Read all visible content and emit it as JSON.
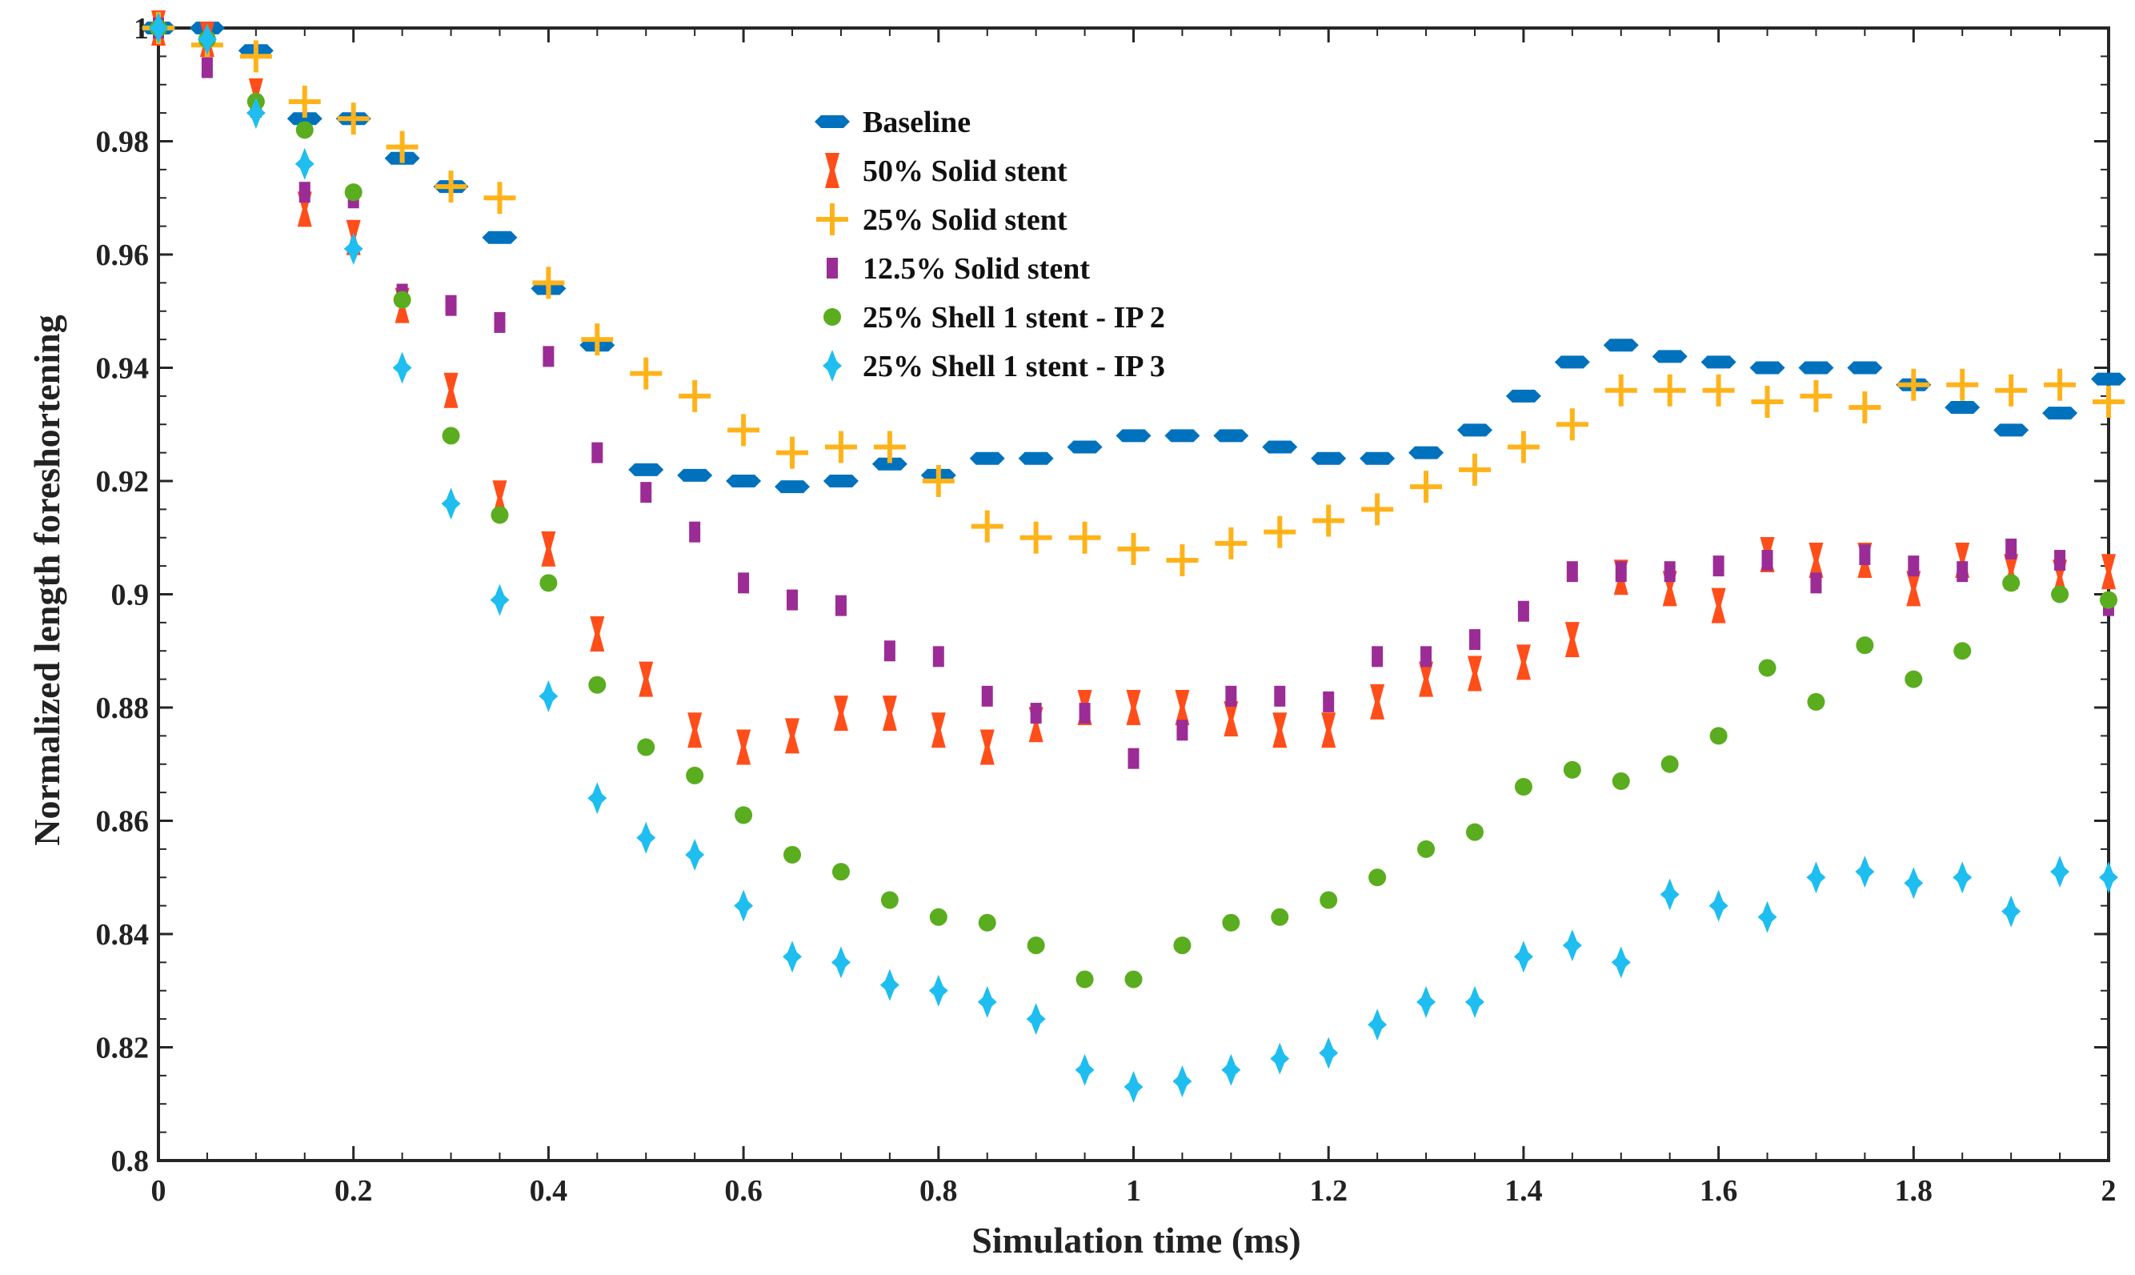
{
  "chart_data": {
    "type": "scatter",
    "title": "",
    "xlabel": "Simulation time (ms)",
    "ylabel": "Normalized length foreshortening",
    "xlim": [
      0,
      2
    ],
    "ylim": [
      0.8,
      1
    ],
    "xticks": [
      0,
      0.2,
      0.4,
      0.6,
      0.8,
      1,
      1.2,
      1.4,
      1.6,
      1.8,
      2
    ],
    "xtick_labels": [
      "0",
      "0.2",
      "0.4",
      "0.6",
      "0.8",
      "1",
      "1.2",
      "1.4",
      "1.6",
      "1.8",
      "2"
    ],
    "yticks": [
      0.8,
      0.82,
      0.84,
      0.86,
      0.88,
      0.9,
      0.92,
      0.94,
      0.96,
      0.98,
      1
    ],
    "ytick_labels": [
      "0.8",
      "0.82",
      "0.84",
      "0.86",
      "0.88",
      "0.9",
      "0.92",
      "0.94",
      "0.96",
      "0.98",
      "1"
    ],
    "legend_position": "top-center",
    "x": [
      0,
      0.05,
      0.1,
      0.15,
      0.2,
      0.25,
      0.3,
      0.35,
      0.4,
      0.45,
      0.5,
      0.55,
      0.6,
      0.65,
      0.7,
      0.75,
      0.8,
      0.85,
      0.9,
      0.95,
      1,
      1.05,
      1.1,
      1.15,
      1.2,
      1.25,
      1.3,
      1.35,
      1.4,
      1.45,
      1.5,
      1.55,
      1.6,
      1.65,
      1.7,
      1.75,
      1.8,
      1.85,
      1.9,
      1.95,
      2
    ],
    "series": [
      {
        "name": "Baseline",
        "marker": "hexagon-h",
        "color": "#0072BD",
        "values": [
          1,
          1,
          0.996,
          0.984,
          0.984,
          0.977,
          0.972,
          0.963,
          0.954,
          0.944,
          0.922,
          0.921,
          0.92,
          0.919,
          0.92,
          0.923,
          0.921,
          0.924,
          0.924,
          0.926,
          0.928,
          0.928,
          0.928,
          0.926,
          0.924,
          0.924,
          0.925,
          0.929,
          0.935,
          0.941,
          0.944,
          0.942,
          0.941,
          0.94,
          0.94,
          0.94,
          0.937,
          0.933,
          0.929,
          0.932,
          0.938
        ]
      },
      {
        "name": "50% Solid stent",
        "marker": "bowtie",
        "color": "#FF4E1A",
        "values": [
          1,
          0.998,
          0.988,
          0.968,
          0.963,
          0.951,
          0.936,
          0.917,
          0.908,
          0.893,
          0.885,
          0.876,
          0.873,
          0.875,
          0.879,
          0.879,
          0.876,
          0.873,
          0.877,
          0.88,
          0.88,
          0.88,
          0.878,
          0.876,
          0.876,
          0.881,
          0.885,
          0.886,
          0.888,
          0.892,
          0.903,
          0.901,
          0.898,
          0.907,
          0.906,
          0.906,
          0.901,
          0.906,
          0.904,
          0.903,
          0.904
        ]
      },
      {
        "name": "25% Solid stent",
        "marker": "plus",
        "color": "#FFB31A",
        "values": [
          1,
          0.997,
          0.995,
          0.987,
          0.984,
          0.979,
          0.972,
          0.97,
          0.955,
          0.945,
          0.939,
          0.935,
          0.929,
          0.925,
          0.926,
          0.926,
          0.92,
          0.912,
          0.91,
          0.91,
          0.908,
          0.906,
          0.909,
          0.911,
          0.913,
          0.915,
          0.919,
          0.922,
          0.926,
          0.93,
          0.936,
          0.936,
          0.936,
          0.934,
          0.935,
          0.933,
          0.937,
          0.937,
          0.936,
          0.937,
          0.934
        ]
      },
      {
        "name": "12.5% Solid stent",
        "marker": "vrect",
        "color": "#9B2C96",
        "values": [
          1,
          0.993,
          0.986,
          0.971,
          0.97,
          0.953,
          0.951,
          0.948,
          0.942,
          0.925,
          0.918,
          0.911,
          0.902,
          0.899,
          0.898,
          0.89,
          0.889,
          0.882,
          0.879,
          0.879,
          0.871,
          0.876,
          0.882,
          0.882,
          0.881,
          0.889,
          0.889,
          0.892,
          0.897,
          0.904,
          0.904,
          0.904,
          0.905,
          0.906,
          0.902,
          0.907,
          0.905,
          0.904,
          0.908,
          0.906,
          0.898
        ]
      },
      {
        "name": "25% Shell 1 stent - IP 2",
        "marker": "circle",
        "color": "#5AAD1E",
        "values": [
          1,
          0.998,
          0.987,
          0.982,
          0.971,
          0.952,
          0.928,
          0.914,
          0.902,
          0.884,
          0.873,
          0.868,
          0.861,
          0.854,
          0.851,
          0.846,
          0.843,
          0.842,
          0.838,
          0.832,
          0.832,
          0.838,
          0.842,
          0.843,
          0.846,
          0.85,
          0.855,
          0.858,
          0.866,
          0.869,
          0.867,
          0.87,
          0.875,
          0.887,
          0.881,
          0.891,
          0.885,
          0.89,
          0.902,
          0.9,
          0.899
        ]
      },
      {
        "name": "25% Shell 1 stent - IP 3",
        "marker": "star",
        "color": "#1EBEF0",
        "values": [
          1,
          0.998,
          0.985,
          0.976,
          0.961,
          0.94,
          0.916,
          0.899,
          0.882,
          0.864,
          0.857,
          0.854,
          0.845,
          0.836,
          0.835,
          0.831,
          0.83,
          0.828,
          0.825,
          0.816,
          0.813,
          0.814,
          0.816,
          0.818,
          0.819,
          0.824,
          0.828,
          0.828,
          0.836,
          0.838,
          0.835,
          0.847,
          0.845,
          0.843,
          0.85,
          0.851,
          0.849,
          0.85,
          0.844,
          0.851,
          0.85
        ]
      }
    ]
  }
}
